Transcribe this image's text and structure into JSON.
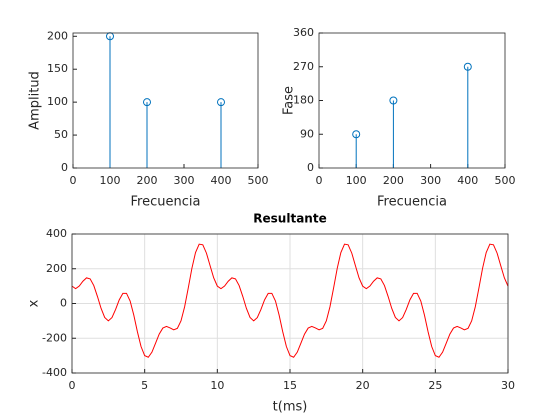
{
  "chart_data": [
    {
      "type": "stem",
      "x": [
        100,
        200,
        400
      ],
      "values": [
        200,
        100,
        100
      ],
      "color": "#0072bd",
      "xlabel": "Frecuencia",
      "ylabel": "Amplitud",
      "xlim": [
        0,
        500
      ],
      "xticks": [
        0,
        100,
        200,
        300,
        400,
        500
      ],
      "ylim": [
        0,
        205
      ],
      "yticks": [
        0,
        50,
        100,
        150,
        200
      ],
      "grid": false
    },
    {
      "type": "stem",
      "x": [
        100,
        200,
        400
      ],
      "values": [
        90,
        180,
        270
      ],
      "color": "#0072bd",
      "xlabel": "Frecuencia",
      "ylabel": "Fase",
      "xlim": [
        0,
        500
      ],
      "xticks": [
        0,
        100,
        200,
        300,
        400,
        500
      ],
      "ylim": [
        0,
        360
      ],
      "yticks": [
        0,
        90,
        180,
        270,
        360
      ],
      "grid": false
    },
    {
      "type": "line",
      "title": "Resultante",
      "xlabel": "t(ms)",
      "ylabel": "x",
      "color": "#ff0000",
      "x": [
        0,
        0.25,
        0.5,
        0.75,
        1,
        1.25,
        1.5,
        1.75,
        2,
        2.25,
        2.5,
        2.75,
        3,
        3.25,
        3.5,
        3.75,
        4,
        4.25,
        4.5,
        4.75,
        5,
        5.25,
        5.5,
        5.75,
        6,
        6.25,
        6.5,
        6.75,
        7,
        7.25,
        7.5,
        7.75,
        8,
        8.25,
        8.5,
        8.75,
        9,
        9.25,
        9.5,
        9.75,
        10,
        10.25,
        10.5,
        10.75,
        11,
        11.25,
        11.5,
        11.75,
        12,
        12.25,
        12.5,
        12.75,
        13,
        13.25,
        13.5,
        13.75,
        14,
        14.25,
        14.5,
        14.75,
        15,
        15.25,
        15.5,
        15.75,
        16,
        16.25,
        16.5,
        16.75,
        17,
        17.25,
        17.5,
        17.75,
        18,
        18.25,
        18.5,
        18.75,
        19,
        19.25,
        19.5,
        19.75,
        20,
        20.25,
        20.5,
        20.75,
        21,
        21.25,
        21.5,
        21.75,
        22,
        22.25,
        22.5,
        22.75,
        23,
        23.25,
        23.5,
        23.75,
        24,
        24.25,
        24.5,
        24.75,
        25,
        25.25,
        25.5,
        25.75,
        26,
        26.25,
        26.5,
        26.75,
        27,
        27.25,
        27.5,
        27.75,
        28,
        28.25,
        28.5,
        28.75,
        29,
        29.25,
        29.5,
        29.75,
        30
      ],
      "values": [
        100,
        85.7,
        100.5,
        128.2,
        147.6,
        141.4,
        103.4,
        40.8,
        -27.9,
        -80.5,
        -100,
        -81.3,
        -33.9,
        21.0,
        58.4,
        58.6,
        14.2,
        -66.4,
        -162.3,
        -247.5,
        -300,
        -309.3,
        -279.9,
        -228.2,
        -176.0,
        -141.4,
        -131.8,
        -140.8,
        -151.5,
        -143.1,
        -100,
        -18.7,
        89.7,
        202.6,
        293.6,
        341.4,
        337.8,
        290.0,
        218.1,
        147.5,
        100,
        85.7,
        100.5,
        128.2,
        147.6,
        141.4,
        103.4,
        40.8,
        -27.9,
        -80.5,
        -100,
        -81.3,
        -33.9,
        21.0,
        58.4,
        58.6,
        14.2,
        -66.4,
        -162.3,
        -247.5,
        -300,
        -309.3,
        -279.9,
        -228.2,
        -176.0,
        -141.4,
        -131.8,
        -140.8,
        -151.5,
        -143.1,
        -100,
        -18.7,
        89.7,
        202.6,
        293.6,
        341.4,
        337.8,
        290.0,
        218.1,
        147.5,
        100,
        85.7,
        100.5,
        128.2,
        147.6,
        141.4,
        103.4,
        40.8,
        -27.9,
        -80.5,
        -100,
        -81.3,
        -33.9,
        21.0,
        58.4,
        58.6,
        14.2,
        -66.4,
        -162.3,
        -247.5,
        -300,
        -309.3,
        -279.9,
        -228.2,
        -176.0,
        -141.4,
        -131.8,
        -140.8,
        -151.5,
        -143.1,
        -100,
        -18.7,
        89.7,
        202.6,
        293.6,
        341.4,
        337.8,
        290.0,
        218.1,
        147.5,
        100
      ],
      "xlim": [
        0,
        30
      ],
      "xticks": [
        0,
        5,
        10,
        15,
        20,
        25,
        30
      ],
      "ylim": [
        -400,
        400
      ],
      "yticks": [
        -400,
        -200,
        0,
        200,
        400
      ],
      "grid": true
    }
  ]
}
